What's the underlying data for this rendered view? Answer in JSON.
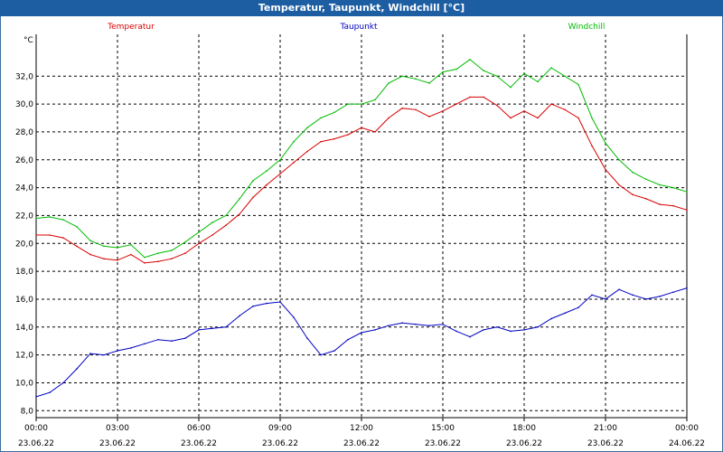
{
  "window": {
    "title": "Temperatur, Taupunkt, Windchill [°C]"
  },
  "colors": {
    "titlebar": "#1d5da2",
    "temperatur": "#d80000",
    "taupunkt": "#0000c0",
    "windchill": "#00bb00",
    "grid": "#000000"
  },
  "chart_data": {
    "type": "line",
    "title": "Temperatur, Taupunkt, Windchill [°C]",
    "ylabel": "°C",
    "xlabel": "",
    "ylim": [
      7.5,
      35.0
    ],
    "y_ticks": [
      "8,0",
      "10,0",
      "12,0",
      "14,0",
      "16,0",
      "18,0",
      "20,0",
      "22,0",
      "24,0",
      "26,0",
      "28,0",
      "30,0",
      "32,0"
    ],
    "x_ticks": [
      {
        "time": "00:00",
        "date": "23.06.22"
      },
      {
        "time": "03:00",
        "date": "23.06.22"
      },
      {
        "time": "06:00",
        "date": "23.06.22"
      },
      {
        "time": "09:00",
        "date": "23.06.22"
      },
      {
        "time": "12:00",
        "date": "23.06.22"
      },
      {
        "time": "15:00",
        "date": "23.06.22"
      },
      {
        "time": "18:00",
        "date": "23.06.22"
      },
      {
        "time": "21:00",
        "date": "23.06.22"
      },
      {
        "time": "00:00",
        "date": "24.06.22"
      }
    ],
    "x_unit": "hours",
    "grid": true,
    "legend_position": "top",
    "series": [
      {
        "name": "Temperatur",
        "color": "#d80000",
        "x": [
          0,
          0.5,
          1,
          1.5,
          2,
          2.5,
          3,
          3.5,
          4,
          4.5,
          5,
          5.5,
          6,
          6.5,
          7,
          7.5,
          8,
          8.5,
          9,
          9.5,
          10,
          10.5,
          11,
          11.5,
          12,
          12.5,
          13,
          13.5,
          14,
          14.5,
          15,
          15.5,
          16,
          16.5,
          17,
          17.5,
          18,
          18.5,
          19,
          19.5,
          20,
          20.5,
          21,
          21.5,
          22,
          22.5,
          23,
          23.5,
          24
        ],
        "values": [
          20.6,
          20.6,
          20.4,
          19.8,
          19.2,
          18.9,
          18.8,
          19.2,
          18.6,
          18.7,
          18.9,
          19.3,
          20.0,
          20.6,
          21.3,
          22.1,
          23.3,
          24.2,
          25.0,
          25.8,
          26.6,
          27.3,
          27.5,
          27.8,
          28.3,
          28.0,
          29.0,
          29.7,
          29.6,
          29.1,
          29.5,
          30.0,
          30.5,
          30.5,
          29.9,
          29.0,
          29.5,
          29.0,
          30.0,
          29.6,
          29.0,
          27.0,
          25.3,
          24.2,
          23.5,
          23.2,
          22.8,
          22.7,
          22.4
        ]
      },
      {
        "name": "Taupunkt",
        "color": "#0000c0",
        "x": [
          0,
          0.5,
          1,
          1.5,
          2,
          2.5,
          3,
          3.5,
          4,
          4.5,
          5,
          5.5,
          6,
          6.5,
          7,
          7.5,
          8,
          8.5,
          9,
          9.5,
          10,
          10.5,
          11,
          11.5,
          12,
          12.5,
          13,
          13.5,
          14,
          14.5,
          15,
          15.5,
          16,
          16.5,
          17,
          17.5,
          18,
          18.5,
          19,
          19.5,
          20,
          20.5,
          21,
          21.5,
          22,
          22.5,
          23,
          23.5,
          24
        ],
        "values": [
          9.0,
          9.3,
          10.0,
          11.0,
          12.1,
          12.0,
          12.3,
          12.5,
          12.8,
          13.1,
          13.0,
          13.2,
          13.8,
          13.9,
          14.0,
          14.8,
          15.5,
          15.7,
          15.8,
          14.7,
          13.2,
          12.0,
          12.3,
          13.1,
          13.6,
          13.8,
          14.1,
          14.3,
          14.2,
          14.1,
          14.2,
          13.7,
          13.3,
          13.8,
          14.0,
          13.7,
          13.8,
          14.0,
          14.6,
          15.0,
          15.4,
          16.3,
          16.0,
          16.7,
          16.3,
          16.0,
          16.2,
          16.5,
          16.8
        ]
      },
      {
        "name": "Windchill",
        "color": "#00bb00",
        "x": [
          0,
          0.5,
          1,
          1.5,
          2,
          2.5,
          3,
          3.5,
          4,
          4.5,
          5,
          5.5,
          6,
          6.5,
          7,
          7.5,
          8,
          8.5,
          9,
          9.5,
          10,
          10.5,
          11,
          11.5,
          12,
          12.5,
          13,
          13.5,
          14,
          14.5,
          15,
          15.5,
          16,
          16.5,
          17,
          17.5,
          18,
          18.5,
          19,
          19.5,
          20,
          20.5,
          21,
          21.5,
          22,
          22.5,
          23,
          23.5,
          24
        ],
        "values": [
          21.8,
          21.9,
          21.7,
          21.2,
          20.2,
          19.8,
          19.7,
          19.9,
          19.0,
          19.3,
          19.5,
          20.1,
          20.8,
          21.5,
          22.0,
          23.2,
          24.5,
          25.2,
          26.0,
          27.3,
          28.3,
          29.0,
          29.4,
          30.0,
          30.0,
          30.3,
          31.5,
          32.0,
          31.8,
          31.5,
          32.3,
          32.5,
          33.2,
          32.4,
          32.0,
          31.2,
          32.2,
          31.6,
          32.6,
          32.0,
          31.4,
          29.0,
          27.2,
          26.0,
          25.1,
          24.6,
          24.2,
          24.0,
          23.7
        ]
      }
    ]
  }
}
